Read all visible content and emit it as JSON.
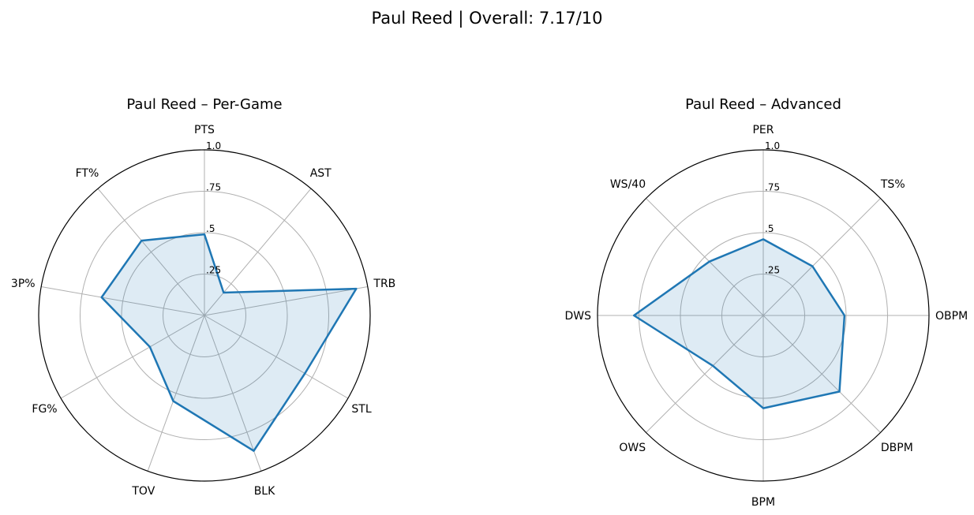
{
  "title": "Paul Reed | Overall: 7.17/10",
  "colors": {
    "line": "#1f77b4",
    "fill": "#1f77b4",
    "grid": "#b0b0b0"
  },
  "chart_data": [
    {
      "type": "radar",
      "title": "Paul Reed – Per-Game",
      "categories": [
        "PTS",
        "AST",
        "TRB",
        "STL",
        "BLK",
        "TOV",
        "FG%",
        "3P%",
        "FT%"
      ],
      "values": [
        0.49,
        0.18,
        0.93,
        0.7,
        0.87,
        0.55,
        0.38,
        0.63,
        0.59
      ],
      "rlim": [
        0,
        1
      ],
      "rticks": [
        0.25,
        0.5,
        0.75,
        1.0
      ],
      "rtick_labels": [
        ".25",
        ".5",
        ".75",
        "1.0"
      ],
      "grid": true
    },
    {
      "type": "radar",
      "title": "Paul Reed – Advanced",
      "categories": [
        "PER",
        "TS%",
        "OBPM",
        "DBPM",
        "BPM",
        "OWS",
        "DWS",
        "WS/40"
      ],
      "values": [
        0.46,
        0.42,
        0.49,
        0.65,
        0.56,
        0.43,
        0.78,
        0.46
      ],
      "rlim": [
        0,
        1
      ],
      "rticks": [
        0.25,
        0.5,
        0.75,
        1.0
      ],
      "rtick_labels": [
        ".25",
        ".5",
        ".75",
        "1.0"
      ],
      "grid": true
    }
  ]
}
